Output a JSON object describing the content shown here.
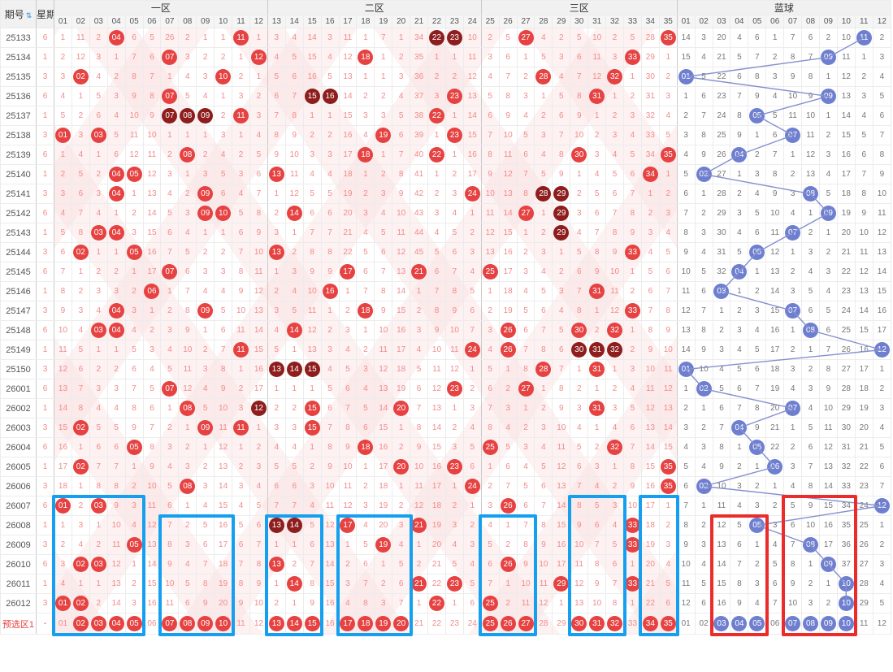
{
  "header": {
    "issue": "期号",
    "week": "星期",
    "zone1": "一区",
    "zone2": "二区",
    "zone3": "三区",
    "blue": "蓝球",
    "sort_icon": "⇅"
  },
  "columns": {
    "zone1": [
      "01",
      "02",
      "03",
      "04",
      "05",
      "06",
      "07",
      "08",
      "09",
      "10",
      "11",
      "12"
    ],
    "zone2": [
      "13",
      "14",
      "15",
      "16",
      "17",
      "18",
      "19",
      "20",
      "21",
      "22",
      "23",
      "24"
    ],
    "zone3": [
      "25",
      "26",
      "27",
      "28",
      "29",
      "30",
      "31",
      "32",
      "33",
      "34",
      "35"
    ],
    "blue": [
      "01",
      "02",
      "03",
      "04",
      "05",
      "06",
      "07",
      "08",
      "09",
      "10",
      "11",
      "12"
    ]
  },
  "colors": {
    "red_ball": "#e64242",
    "dark_ball": "#8e1d1d",
    "blue_ball": "#6f7fd0",
    "miss_red": "#f08c8c",
    "miss_blue": "#777777",
    "box_blue": "#14a0ef",
    "box_red": "#ec2b2b",
    "line_blue": "#8490cf"
  },
  "rows": [
    {
      "issue": "25133",
      "week": "6",
      "z1": "1 11 2 R04 6 5 26 2 1 1 R11 1",
      "z2": "3 4 14 3 11 1 7 1 34 D22 D23 10",
      "z3": "2 5 R27 4 2 5 10 2 5 28 R35",
      "bl": "14 3 20 4 6 1 7 6 2 10 B11 2"
    },
    {
      "issue": "25134",
      "week": "1",
      "z1": "2 12 3 1 7 6 R07 3 2 2 1 R12",
      "z2": "4 5 15 4 12 R18 1 2 35 1 1 11",
      "z3": "3 6 1 5 3 6 11 3 R33 29 1",
      "bl": "15 4 21 5 7 2 8 7 B09 11 1 3"
    },
    {
      "issue": "25135",
      "week": "3",
      "z1": "3 R02 4 2 8 7 1 4 3 R10 2 1",
      "z2": "5 6 16 5 13 1 1 3 36 2 2 12",
      "z3": "4 7 2 R28 4 7 12 R32 1 30 2",
      "bl": "B01 5 22 6 8 3 9 8 1 12 2 4"
    },
    {
      "issue": "25136",
      "week": "6",
      "z1": "4 1 5 3 9 8 R07 5 4 1 3 2",
      "z2": "6 7 D15 D16 14 2 2 4 37 3 R23 13",
      "z3": "5 8 3 1 5 8 R31 1 2 31 3",
      "bl": "1 6 23 7 9 4 10 9 B09 13 3 5"
    },
    {
      "issue": "25137",
      "week": "1",
      "z1": "5 2 6 4 10 9 D07 D08 D09 2 R11 3",
      "z2": "7 8 1 1 15 3 3 5 38 R22 1 14",
      "z3": "6 9 4 2 6 9 1 2 3 32 4",
      "bl": "2 7 24 8 B05 5 11 10 1 14 4 6"
    },
    {
      "issue": "25138",
      "week": "3",
      "z1": "R01 3 R03 5 11 10 1 1 1 3 1 4",
      "z2": "8 9 2 2 16 4 R19 6 39 1 R23 15",
      "z3": "7 10 5 3 7 10 2 3 4 33 5",
      "bl": "3 8 25 9 1 6 B07 11 2 15 5 7"
    },
    {
      "issue": "25139",
      "week": "6",
      "z1": "1 4 1 6 12 11 2 R08 2 4 2 5",
      "z2": "9 10 3 3 17 R18 1 7 40 R22 1 16",
      "z3": "8 11 6 4 8 R30 3 4 5 34 R35",
      "bl": "4 9 26 B04 2 7 1 12 3 16 6 8"
    },
    {
      "issue": "25140",
      "week": "1",
      "z1": "2 5 2 R04 R05 12 3 1 3 5 3 6",
      "z2": "R13 11 4 4 18 1 2 8 41 1 2 17",
      "z3": "9 12 7 5 9 1 4 5 6 R34 1",
      "bl": "5 B02 27 1 3 8 2 13 4 17 7 9"
    },
    {
      "issue": "25141",
      "week": "3",
      "z1": "3 6 3 R04 1 13 4 2 R09 6 4 7",
      "z2": "1 12 5 5 19 2 3 9 42 2 3 R24",
      "z3": "10 13 8 D28 D29 2 5 6 7 1 2",
      "bl": "6 1 28 2 4 9 3 B08 5 18 8 10"
    },
    {
      "issue": "25142",
      "week": "6",
      "z1": "4 7 4 1 2 14 5 3 R09 R10 5 8",
      "z2": "2 R14 6 6 20 3 4 10 43 3 4 1",
      "z3": "11 14 R27 1 D29 3 6 7 8 2 3",
      "bl": "7 2 29 3 5 10 4 1 B09 19 9 11"
    },
    {
      "issue": "25143",
      "week": "1",
      "z1": "5 8 R03 R04 3 15 6 4 1 1 6 9",
      "z2": "3 1 7 7 21 4 5 11 44 4 5 2",
      "z3": "12 15 1 2 D29 4 7 8 9 3 4",
      "bl": "8 3 30 4 6 11 B07 2 1 20 10 12"
    },
    {
      "issue": "25144",
      "week": "3",
      "z1": "6 R02 1 1 R05 16 7 5 2 2 7 10",
      "z2": "R13 2 8 8 22 5 6 12 45 5 6 3",
      "z3": "13 16 2 3 1 5 8 9 R33 4 5",
      "bl": "9 4 31 5 B05 12 1 3 2 21 11 13"
    },
    {
      "issue": "25145",
      "week": "6",
      "z1": "7 1 2 2 1 17 R07 6 3 3 8 11",
      "z2": "1 3 9 9 R17 6 7 13 R21 6 7 4",
      "z3": "R25 17 3 4 2 6 9 10 1 5 6",
      "bl": "10 5 32 B04 1 13 2 4 3 22 12 14"
    },
    {
      "issue": "25146",
      "week": "1",
      "z1": "8 2 3 3 2 R06 1 7 4 4 9 12",
      "z2": "2 4 10 R16 1 7 8 14 1 7 8 5",
      "z3": "1 18 4 5 3 7 R31 11 2 6 7",
      "bl": "11 6 B03 1 2 14 3 5 4 23 13 15"
    },
    {
      "issue": "25147",
      "week": "3",
      "z1": "9 3 4 R04 3 1 2 8 R09 5 10 13",
      "z2": "3 5 11 1 2 R18 9 15 2 8 9 6",
      "z3": "2 19 5 6 4 8 1 12 R33 7 8",
      "bl": "12 7 1 2 3 15 B07 6 5 24 14 16"
    },
    {
      "issue": "25148",
      "week": "6",
      "z1": "10 4 R03 R04 4 2 3 9 1 6 11 14",
      "z2": "4 R14 12 2 3 1 10 16 3 9 10 7",
      "z3": "3 R26 6 7 5 R30 2 R32 1 8 9",
      "bl": "13 8 2 3 4 16 1 B08 6 25 15 17"
    },
    {
      "issue": "25149",
      "week": "1",
      "z1": "11 5 1 1 5 3 4 10 2 7 R11 15",
      "z2": "5 1 13 3 4 2 11 17 4 10 11 R24",
      "z3": "4 R26 7 8 6 D30 D31 D32 2 9 10",
      "bl": "14 9 3 4 5 17 2 1 7 26 16 B12"
    },
    {
      "issue": "25150",
      "week": "3",
      "z1": "12 6 2 2 6 4 5 11 3 8 1 16",
      "z2": "D13 D14 D15 4 5 3 12 18 5 11 12 1",
      "z3": "5 1 8 R28 7 1 R31 1 3 10 11",
      "bl": "B01 10 4 5 6 18 3 2 8 27 17 1"
    },
    {
      "issue": "26001",
      "week": "6",
      "z1": "13 7 3 3 7 5 R07 12 4 9 2 17",
      "z2": "1 1 1 5 6 4 13 19 6 12 R23 2",
      "z3": "6 2 R27 1 8 2 1 2 4 11 12",
      "bl": "1 B02 5 6 7 19 4 3 9 28 18 2"
    },
    {
      "issue": "26002",
      "week": "1",
      "z1": "14 8 4 4 8 6 1 R08 5 10 3 D12",
      "z2": "2 2 R15 6 7 5 14 R20 7 13 1 3",
      "z3": "7 3 1 2 9 3 R31 3 5 12 13",
      "bl": "2 1 6 7 8 20 B07 4 10 29 19 3"
    },
    {
      "issue": "26003",
      "week": "3",
      "z1": "15 R02 5 5 9 7 2 1 R09 11 R11 1",
      "z2": "3 3 R15 7 8 6 15 1 8 14 2 4",
      "z3": "8 4 2 3 10 4 1 4 6 13 14",
      "bl": "3 2 7 B04 9 21 1 5 11 30 20 4"
    },
    {
      "issue": "26004",
      "week": "6",
      "z1": "16 1 6 6 R05 8 3 2 1 12 1 2",
      "z2": "4 4 1 8 9 R18 16 2 9 15 3 5",
      "z3": "R25 5 3 4 11 5 2 R32 7 14 15",
      "bl": "4 3 8 1 B05 22 2 6 12 31 21 5"
    },
    {
      "issue": "26005",
      "week": "1",
      "z1": "17 R02 7 7 1 9 4 3 2 13 2 3",
      "z2": "5 5 2 9 10 1 17 R20 10 16 R23 6",
      "z3": "1 6 4 5 12 6 3 1 8 15 R35",
      "bl": "5 4 9 2 1 B06 3 7 13 32 22 6"
    },
    {
      "issue": "26006",
      "week": "3",
      "z1": "18 1 8 8 2 10 5 R08 3 14 3 4",
      "z2": "6 6 3 10 11 2 18 1 11 17 1 R24",
      "z3": "2 7 5 6 13 7 4 2 9 16 R35",
      "bl": "6 B02 10 3 2 1 4 8 14 33 23 7"
    },
    {
      "issue": "26007",
      "week": "6",
      "z1": "R01 2 R03 9 3 11 6 1 4 15 4 5",
      "z2": "7 7 4 11 12 3 19 2 12 18 2 1",
      "z3": "3 R26 6 7 14 8 5 3 10 17 1",
      "bl": "7 1 11 4 3 2 5 9 15 34 24 B12"
    },
    {
      "issue": "26008",
      "week": "1",
      "z1": "1 3 1 10 4 12 7 2 5 16 5 6",
      "z2": "D13 D14 5 12 R17 4 20 3 R21 19 3 2",
      "z3": "4 1 7 8 15 9 6 4 R33 18 2",
      "bl": "8 2 12 5 B05 3 6 10 16 35 25 1"
    },
    {
      "issue": "26009",
      "week": "3",
      "z1": "2 4 2 11 R05 13 8 3 6 17 6 7",
      "z2": "1 1 6 13 1 5 R19 4 1 20 4 3",
      "z3": "5 2 8 9 16 10 7 5 R33 19 3",
      "bl": "9 3 13 6 1 4 7 B08 17 36 26 2"
    },
    {
      "issue": "26010",
      "week": "6",
      "z1": "3 R02 R03 12 1 14 9 4 7 18 7 8",
      "z2": "R13 2 7 14 2 6 1 5 2 21 5 4",
      "z3": "6 R26 9 10 17 11 8 6 1 20 4",
      "bl": "10 4 14 7 2 5 8 1 B09 37 27 3"
    },
    {
      "issue": "26011",
      "week": "1",
      "z1": "4 1 1 13 2 15 10 5 8 19 8 9",
      "z2": "1 R14 8 15 3 7 2 6 R21 22 R23 5",
      "z3": "7 1 10 11 R29 12 9 7 R33 21 5",
      "bl": "11 5 15 8 3 6 9 2 1 B10 28 4"
    },
    {
      "issue": "26012",
      "week": "3",
      "z1": "R01 R02 2 14 3 16 11 6 9 20 9 10",
      "z2": "2 1 9 16 4 8 3 7 1 R22 1 6",
      "z3": "R25 2 11 12 1 13 10 8 1 22 6",
      "bl": "12 6 16 9 4 7 10 3 2 B10 29 5"
    },
    {
      "issue": "预选区1",
      "week": "-",
      "pre": true,
      "z1": "01 R02 R03 R04 R05 06 R07 R08 R09 R10 11 12",
      "z2": "R13 R14 R15 16 R17 R18 R19 R20 21 22 23 24",
      "z3": "R25 R26 R27 28 29 R30 R31 R32 33 R34 R35",
      "bl": "01 02 B03 B04 B05 06 B07 B08 B09 B10 11 12"
    }
  ],
  "annotations": {
    "boxes": [
      {
        "color": "blue",
        "from": "26007",
        "c1": "r01",
        "c2": "r05"
      },
      {
        "color": "blue",
        "from": "26008",
        "c1": "r07",
        "c2": "r10"
      },
      {
        "color": "blue",
        "from": "26008",
        "c1": "r13",
        "c2": "r15"
      },
      {
        "color": "blue",
        "from": "26008",
        "c1": "r17",
        "c2": "r20"
      },
      {
        "color": "blue",
        "from": "26008",
        "c1": "r25",
        "c2": "r27"
      },
      {
        "color": "blue",
        "from": "26007",
        "c1": "r30",
        "c2": "r32"
      },
      {
        "color": "blue",
        "from": "26007",
        "c1": "r34",
        "c2": "r35"
      },
      {
        "color": "red",
        "from": "26008",
        "c1": "b03",
        "c2": "b05"
      },
      {
        "color": "red",
        "from": "26007",
        "c1": "b07",
        "c2": "b10"
      }
    ]
  }
}
